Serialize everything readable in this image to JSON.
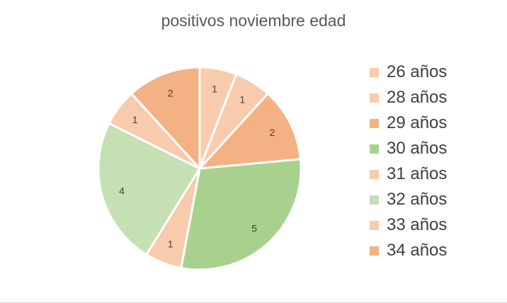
{
  "chart_data": {
    "type": "pie",
    "title": "positivos noviembre edad",
    "categories": [
      "26 años",
      "28 años",
      "29 años",
      "30 años",
      "31 años",
      "32 años",
      "33 años",
      "34 años"
    ],
    "values": [
      1,
      1,
      2,
      5,
      1,
      4,
      1,
      2
    ],
    "data_labels": [
      "1",
      "1",
      "2",
      "5",
      "1",
      "4",
      "1",
      "2"
    ],
    "colors": [
      "#F8CBAD",
      "#F8CBAD",
      "#F4B183",
      "#A9D18E",
      "#F8CBAD",
      "#C5E0B4",
      "#F8CBAD",
      "#F4B183"
    ],
    "start_angle": "12 o'clock",
    "direction": "clockwise",
    "legend_position": "right"
  }
}
